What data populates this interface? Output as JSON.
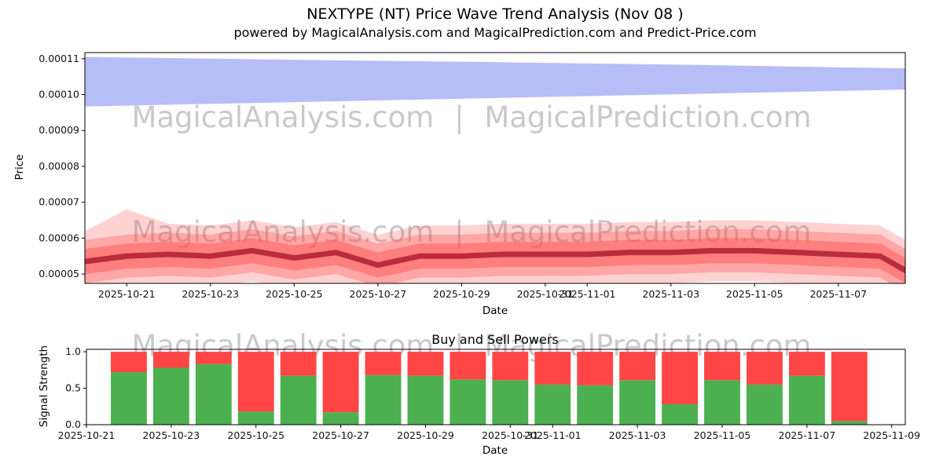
{
  "title": {
    "line1": "NEXTYPE (NT) Price Wave Trend Analysis (Nov 08 )",
    "line2": "powered by MagicalAnalysis.com and MagicalPrediction.com and Predict-Price.com"
  },
  "watermark": {
    "text": "MagicalAnalysis.com | MagicalPrediction.com",
    "color": "#c9c9c9"
  },
  "chart_data": [
    {
      "type": "area",
      "name": "price-wave-trend",
      "xlabel": "Date",
      "ylabel": "Price",
      "x_start_date": "2025-10-20",
      "xlim_days": [
        0,
        19.6
      ],
      "ylim_e5": [
        4.74,
        11.17
      ],
      "grid": false,
      "y_ticks": [
        {
          "value_e5": 5,
          "label": "0.00005"
        },
        {
          "value_e5": 6,
          "label": "0.00006"
        },
        {
          "value_e5": 7,
          "label": "0.00007"
        },
        {
          "value_e5": 8,
          "label": "0.00008"
        },
        {
          "value_e5": 9,
          "label": "0.00009"
        },
        {
          "value_e5": 10,
          "label": "0.00010"
        },
        {
          "value_e5": 11,
          "label": "0.00011"
        }
      ],
      "x_ticks": [
        {
          "day": 1,
          "label": "2025-10-21"
        },
        {
          "day": 3,
          "label": "2025-10-23"
        },
        {
          "day": 5,
          "label": "2025-10-25"
        },
        {
          "day": 7,
          "label": "2025-10-27"
        },
        {
          "day": 9,
          "label": "2025-10-29"
        },
        {
          "day": 11,
          "label": "2025-10-31"
        },
        {
          "day": 12,
          "label": "2025-11-01"
        },
        {
          "day": 14,
          "label": "2025-11-03"
        },
        {
          "day": 16,
          "label": "2025-11-05"
        },
        {
          "day": 18,
          "label": "2025-11-07"
        }
      ],
      "x_days": [
        0,
        1,
        2,
        3,
        4,
        5,
        6,
        7,
        8,
        9,
        10,
        11,
        12,
        13,
        14,
        15,
        16,
        17,
        18,
        19,
        19.6
      ],
      "mid_line": {
        "color": "#b5283c",
        "width": 7,
        "opacity": 0.95,
        "values_e5": [
          5.35,
          5.5,
          5.55,
          5.5,
          5.65,
          5.45,
          5.6,
          5.25,
          5.5,
          5.5,
          5.55,
          5.55,
          5.55,
          5.6,
          5.6,
          5.65,
          5.65,
          5.6,
          5.55,
          5.5,
          5.1
        ]
      },
      "bands": [
        {
          "name": "outer",
          "color": "#ff4d4d",
          "opacity": 0.25,
          "upper_e5": [
            6.2,
            6.8,
            6.4,
            6.35,
            6.5,
            6.3,
            6.45,
            6.1,
            6.35,
            6.35,
            6.4,
            6.4,
            6.4,
            6.45,
            6.45,
            6.5,
            6.5,
            6.45,
            6.4,
            6.35,
            5.95
          ],
          "lower_e5": [
            4.5,
            4.65,
            4.7,
            4.65,
            4.8,
            4.6,
            4.75,
            4.4,
            4.65,
            4.65,
            4.7,
            4.7,
            4.7,
            4.75,
            4.75,
            4.8,
            4.8,
            4.75,
            4.7,
            4.65,
            4.25
          ]
        },
        {
          "name": "middle",
          "color": "#ff4d4d",
          "opacity": 0.33,
          "upper_e5": [
            5.95,
            6.1,
            6.15,
            6.1,
            6.25,
            6.05,
            6.2,
            5.85,
            6.1,
            6.1,
            6.15,
            6.15,
            6.15,
            6.2,
            6.2,
            6.25,
            6.25,
            6.2,
            6.15,
            6.1,
            5.7
          ],
          "lower_e5": [
            4.75,
            4.9,
            4.95,
            4.9,
            5.05,
            4.85,
            5.0,
            4.65,
            4.9,
            4.9,
            4.95,
            4.95,
            4.95,
            5.0,
            5.0,
            5.05,
            5.05,
            5.0,
            4.95,
            4.9,
            4.5
          ]
        },
        {
          "name": "inner",
          "color": "#ff4d4d",
          "opacity": 0.45,
          "upper_e5": [
            5.7,
            5.85,
            5.9,
            5.85,
            6.0,
            5.8,
            5.95,
            5.6,
            5.85,
            5.85,
            5.9,
            5.9,
            5.9,
            5.95,
            5.95,
            6.0,
            6.0,
            5.95,
            5.9,
            5.85,
            5.45
          ],
          "lower_e5": [
            5.0,
            5.15,
            5.2,
            5.15,
            5.3,
            5.1,
            5.25,
            4.9,
            5.15,
            5.15,
            5.2,
            5.2,
            5.2,
            5.25,
            5.25,
            5.3,
            5.3,
            5.25,
            5.2,
            5.15,
            4.75
          ]
        }
      ],
      "forecast_band": {
        "name": "upper-blue-band",
        "color": "#7b86ee",
        "opacity": 0.55,
        "x_days": [
          0,
          5,
          10,
          15,
          19.6
        ],
        "upper_e5": [
          11.05,
          10.97,
          10.9,
          10.82,
          10.73
        ],
        "lower_e5": [
          9.67,
          9.79,
          9.91,
          10.03,
          10.14
        ]
      }
    },
    {
      "type": "bar",
      "name": "buy-sell-powers",
      "title": "Buy and Sell Powers",
      "xlabel": "Date",
      "ylabel": "Signal Strength",
      "x_start_date": "2025-10-21",
      "xlim_days": [
        0,
        19.32
      ],
      "ylim": [
        0,
        1.033
      ],
      "grid": false,
      "y_ticks": [
        {
          "value": 0,
          "label": "0.0"
        },
        {
          "value": 0.5,
          "label": "0.5"
        },
        {
          "value": 1,
          "label": "1.0"
        }
      ],
      "x_ticks": [
        {
          "day": 0,
          "label": "2025-10-21"
        },
        {
          "day": 2,
          "label": "2025-10-23"
        },
        {
          "day": 4,
          "label": "2025-10-25"
        },
        {
          "day": 6,
          "label": "2025-10-27"
        },
        {
          "day": 8,
          "label": "2025-10-29"
        },
        {
          "day": 10,
          "label": "2025-10-31"
        },
        {
          "day": 11,
          "label": "2025-11-01"
        },
        {
          "day": 13,
          "label": "2025-11-03"
        },
        {
          "day": 15,
          "label": "2025-11-05"
        },
        {
          "day": 17,
          "label": "2025-11-07"
        },
        {
          "day": 19,
          "label": "2025-11-09"
        }
      ],
      "categories": [
        "2025-10-22",
        "2025-10-23",
        "2025-10-24",
        "2025-10-25",
        "2025-10-26",
        "2025-10-27",
        "2025-10-28",
        "2025-10-29",
        "2025-10-30",
        "2025-10-31",
        "2025-11-01",
        "2025-11-02",
        "2025-11-03",
        "2025-11-04",
        "2025-11-05",
        "2025-11-06",
        "2025-11-07",
        "2025-11-08"
      ],
      "bar_days": [
        1,
        2,
        3,
        4,
        5,
        6,
        7,
        8,
        9,
        10,
        11,
        12,
        13,
        14,
        15,
        16,
        17,
        18
      ],
      "bar_width_days": 0.85,
      "series": [
        {
          "name": "Buy",
          "color": "#4caf50",
          "values": [
            0.72,
            0.78,
            0.83,
            0.18,
            0.67,
            0.17,
            0.68,
            0.67,
            0.62,
            0.61,
            0.55,
            0.54,
            0.61,
            0.28,
            0.61,
            0.55,
            0.67,
            0.05
          ]
        },
        {
          "name": "Sell",
          "color": "#ff4545",
          "values": [
            0.28,
            0.22,
            0.17,
            0.82,
            0.33,
            0.83,
            0.32,
            0.33,
            0.38,
            0.39,
            0.45,
            0.46,
            0.39,
            0.72,
            0.39,
            0.45,
            0.33,
            0.95
          ]
        }
      ]
    }
  ]
}
